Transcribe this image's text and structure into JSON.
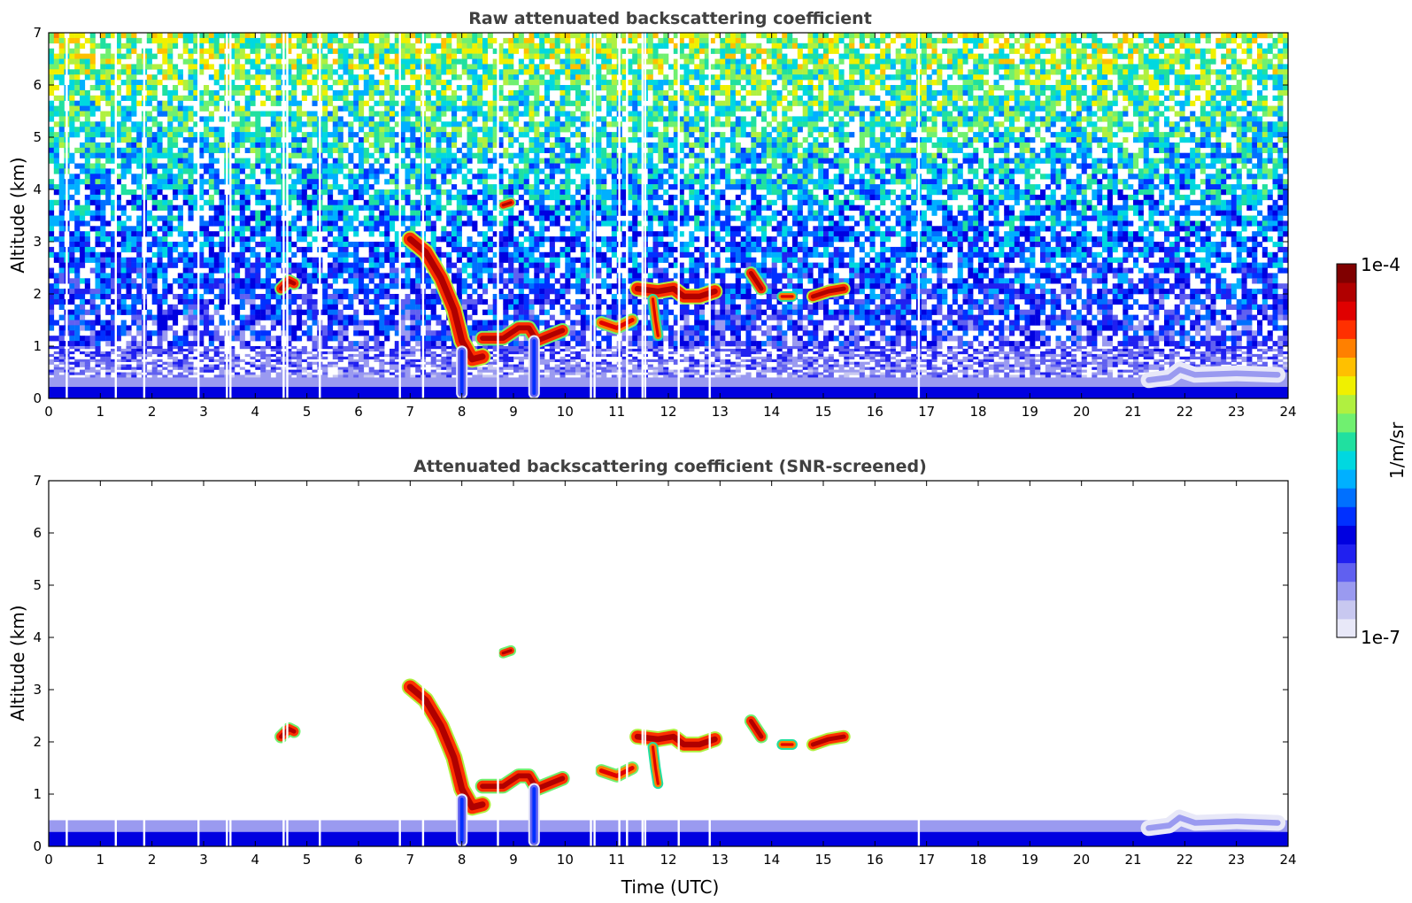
{
  "chart_data": [
    {
      "type": "heatmap",
      "title": "Raw attenuated backscattering coefficient",
      "xlabel": "",
      "ylabel": "Altitude (km)",
      "xlim": [
        0,
        24
      ],
      "ylim": [
        0,
        7
      ],
      "x_ticks": [
        "0",
        "1",
        "2",
        "3",
        "4",
        "5",
        "6",
        "7",
        "8",
        "9",
        "10",
        "11",
        "12",
        "13",
        "14",
        "15",
        "16",
        "17",
        "18",
        "19",
        "20",
        "21",
        "22",
        "23",
        "24"
      ],
      "y_ticks": [
        "0",
        "1",
        "2",
        "3",
        "4",
        "5",
        "6",
        "7"
      ],
      "color_scale": "log",
      "surface_layer": {
        "top_km": 0.4,
        "level": 0.08
      },
      "noise_gradient": {
        "level_at_1km": 0.22,
        "level_at_7km": 0.62
      },
      "missing_data_times": [
        0.35,
        1.3,
        1.85,
        2.9,
        3.45,
        3.52,
        4.55,
        4.62,
        5.25,
        6.8,
        7.25,
        8.7,
        10.5,
        10.57,
        11.05,
        11.2,
        11.5,
        11.55,
        12.2,
        12.8,
        16.85
      ],
      "features": [
        {
          "kind": "cloud",
          "points": [
            [
              7.0,
              3.05
            ],
            [
              7.3,
              2.8
            ],
            [
              7.6,
              2.3
            ],
            [
              7.85,
              1.7
            ],
            [
              8.0,
              1.1
            ],
            [
              8.2,
              0.75
            ],
            [
              8.4,
              0.8
            ]
          ],
          "thickness_km": 0.22,
          "level": 0.97
        },
        {
          "kind": "cloud",
          "points": [
            [
              8.4,
              1.15
            ],
            [
              8.8,
              1.15
            ],
            [
              9.1,
              1.35
            ],
            [
              9.3,
              1.35
            ],
            [
              9.45,
              1.1
            ],
            [
              9.7,
              1.2
            ],
            [
              9.95,
              1.3
            ]
          ],
          "thickness_km": 0.18,
          "level": 0.95
        },
        {
          "kind": "cloud",
          "points": [
            [
              10.7,
              1.45
            ],
            [
              11.0,
              1.35
            ],
            [
              11.3,
              1.5
            ]
          ],
          "thickness_km": 0.15,
          "level": 0.92
        },
        {
          "kind": "cloud",
          "points": [
            [
              11.4,
              2.1
            ],
            [
              11.8,
              2.05
            ],
            [
              12.1,
              2.1
            ],
            [
              12.3,
              1.95
            ],
            [
              12.6,
              1.95
            ],
            [
              12.9,
              2.05
            ]
          ],
          "thickness_km": 0.2,
          "level": 0.97
        },
        {
          "kind": "cloud",
          "points": [
            [
              11.7,
              1.9
            ],
            [
              11.75,
              1.5
            ],
            [
              11.8,
              1.2
            ]
          ],
          "thickness_km": 0.1,
          "level": 0.9
        },
        {
          "kind": "cloud",
          "points": [
            [
              13.6,
              2.4
            ],
            [
              13.8,
              2.1
            ]
          ],
          "thickness_km": 0.15,
          "level": 0.95
        },
        {
          "kind": "cloud",
          "points": [
            [
              14.2,
              1.95
            ],
            [
              14.4,
              1.95
            ]
          ],
          "thickness_km": 0.1,
          "level": 0.9
        },
        {
          "kind": "cloud",
          "points": [
            [
              14.8,
              1.95
            ],
            [
              15.1,
              2.05
            ],
            [
              15.4,
              2.1
            ]
          ],
          "thickness_km": 0.15,
          "level": 0.96
        },
        {
          "kind": "cloud",
          "points": [
            [
              4.5,
              2.1
            ],
            [
              4.65,
              2.25
            ],
            [
              4.75,
              2.2
            ]
          ],
          "thickness_km": 0.15,
          "level": 0.95
        },
        {
          "kind": "cloud",
          "points": [
            [
              8.8,
              3.7
            ],
            [
              8.95,
              3.75
            ]
          ],
          "thickness_km": 0.1,
          "level": 0.95
        },
        {
          "kind": "cloud",
          "points": [
            [
              8.0,
              0.9
            ],
            [
              8.0,
              0.1
            ]
          ],
          "thickness_km": 0.12,
          "level": 0.3
        },
        {
          "kind": "cloud",
          "points": [
            [
              9.4,
              1.1
            ],
            [
              9.4,
              0.1
            ]
          ],
          "thickness_km": 0.12,
          "level": 0.3
        },
        {
          "kind": "cloud",
          "points": [
            [
              21.3,
              0.35
            ],
            [
              21.7,
              0.4
            ],
            [
              21.9,
              0.55
            ],
            [
              22.2,
              0.45
            ],
            [
              23.0,
              0.48
            ],
            [
              23.8,
              0.45
            ]
          ],
          "thickness_km": 0.2,
          "level": 0.12
        }
      ]
    },
    {
      "type": "heatmap",
      "title": "Attenuated backscattering coefficient (SNR-screened)",
      "xlabel": "Time (UTC)",
      "ylabel": "Altitude (km)",
      "xlim": [
        0,
        24
      ],
      "ylim": [
        0,
        7
      ],
      "x_ticks": [
        "0",
        "1",
        "2",
        "3",
        "4",
        "5",
        "6",
        "7",
        "8",
        "9",
        "10",
        "11",
        "12",
        "13",
        "14",
        "15",
        "16",
        "17",
        "18",
        "19",
        "20",
        "21",
        "22",
        "23",
        "24"
      ],
      "y_ticks": [
        "0",
        "1",
        "2",
        "3",
        "4",
        "5",
        "6",
        "7"
      ],
      "color_scale": "log",
      "surface_layer": {
        "top_km": 0.5,
        "level": 0.1
      },
      "missing_data_times": [
        0.35,
        1.3,
        1.85,
        2.9,
        3.45,
        3.52,
        4.55,
        4.62,
        5.25,
        6.8,
        7.25,
        8.7,
        10.5,
        10.57,
        11.05,
        11.2,
        11.5,
        11.55,
        12.2,
        12.8,
        16.85
      ],
      "features": [
        {
          "kind": "cloud",
          "points": [
            [
              7.0,
              3.05
            ],
            [
              7.3,
              2.8
            ],
            [
              7.6,
              2.3
            ],
            [
              7.85,
              1.7
            ],
            [
              8.0,
              1.1
            ],
            [
              8.2,
              0.75
            ],
            [
              8.4,
              0.8
            ]
          ],
          "thickness_km": 0.22,
          "level": 0.97
        },
        {
          "kind": "cloud",
          "points": [
            [
              8.4,
              1.15
            ],
            [
              8.8,
              1.15
            ],
            [
              9.1,
              1.35
            ],
            [
              9.3,
              1.35
            ],
            [
              9.45,
              1.1
            ],
            [
              9.7,
              1.2
            ],
            [
              9.95,
              1.3
            ]
          ],
          "thickness_km": 0.18,
          "level": 0.95
        },
        {
          "kind": "cloud",
          "points": [
            [
              10.7,
              1.45
            ],
            [
              11.0,
              1.35
            ],
            [
              11.3,
              1.5
            ]
          ],
          "thickness_km": 0.15,
          "level": 0.92
        },
        {
          "kind": "cloud",
          "points": [
            [
              11.4,
              2.1
            ],
            [
              11.8,
              2.05
            ],
            [
              12.1,
              2.1
            ],
            [
              12.3,
              1.95
            ],
            [
              12.6,
              1.95
            ],
            [
              12.9,
              2.05
            ]
          ],
          "thickness_km": 0.2,
          "level": 0.97
        },
        {
          "kind": "cloud",
          "points": [
            [
              11.7,
              1.9
            ],
            [
              11.75,
              1.5
            ],
            [
              11.8,
              1.2
            ]
          ],
          "thickness_km": 0.1,
          "level": 0.9
        },
        {
          "kind": "cloud",
          "points": [
            [
              13.6,
              2.4
            ],
            [
              13.8,
              2.1
            ]
          ],
          "thickness_km": 0.15,
          "level": 0.95
        },
        {
          "kind": "cloud",
          "points": [
            [
              14.2,
              1.95
            ],
            [
              14.4,
              1.95
            ]
          ],
          "thickness_km": 0.1,
          "level": 0.9
        },
        {
          "kind": "cloud",
          "points": [
            [
              14.8,
              1.95
            ],
            [
              15.1,
              2.05
            ],
            [
              15.4,
              2.1
            ]
          ],
          "thickness_km": 0.15,
          "level": 0.96
        },
        {
          "kind": "cloud",
          "points": [
            [
              4.5,
              2.1
            ],
            [
              4.65,
              2.25
            ],
            [
              4.75,
              2.2
            ]
          ],
          "thickness_km": 0.15,
          "level": 0.95
        },
        {
          "kind": "cloud",
          "points": [
            [
              8.8,
              3.7
            ],
            [
              8.95,
              3.75
            ]
          ],
          "thickness_km": 0.1,
          "level": 0.95
        },
        {
          "kind": "cloud",
          "points": [
            [
              8.0,
              0.9
            ],
            [
              8.0,
              0.1
            ]
          ],
          "thickness_km": 0.12,
          "level": 0.3
        },
        {
          "kind": "cloud",
          "points": [
            [
              9.4,
              1.1
            ],
            [
              9.4,
              0.1
            ]
          ],
          "thickness_km": 0.12,
          "level": 0.3
        },
        {
          "kind": "cloud",
          "points": [
            [
              21.3,
              0.35
            ],
            [
              21.7,
              0.4
            ],
            [
              21.9,
              0.55
            ],
            [
              22.2,
              0.45
            ],
            [
              23.0,
              0.48
            ],
            [
              23.8,
              0.45
            ]
          ],
          "thickness_km": 0.2,
          "level": 0.12
        }
      ]
    }
  ],
  "colorbar": {
    "label": "1/m/sr",
    "max_label": "1e-4",
    "min_label": "1e-7",
    "colors": [
      "#e8e8f8",
      "#c8c8f0",
      "#9a9af0",
      "#6060f0",
      "#2020f0",
      "#0000e0",
      "#0030ff",
      "#0070ff",
      "#00b0ff",
      "#00d8e0",
      "#20e0a0",
      "#70f070",
      "#b0f040",
      "#f0f000",
      "#ffc000",
      "#ff8000",
      "#ff3000",
      "#e00000",
      "#b00000",
      "#800000"
    ]
  }
}
